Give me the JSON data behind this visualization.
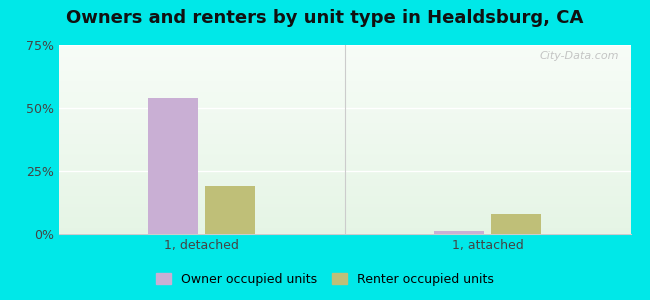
{
  "title": "Owners and renters by unit type in Healdsburg, CA",
  "categories": [
    "1, detached",
    "1, attached"
  ],
  "owner_values": [
    54.0,
    1.0
  ],
  "renter_values": [
    19.0,
    8.0
  ],
  "owner_color": "#c9afd4",
  "renter_color": "#bfbf78",
  "ylim": [
    0,
    75
  ],
  "yticks": [
    0,
    25,
    50,
    75
  ],
  "ytick_labels": [
    "0%",
    "25%",
    "50%",
    "75%"
  ],
  "bar_width": 0.35,
  "group_centers": [
    1.0,
    3.0
  ],
  "xlim": [
    0,
    4.0
  ],
  "legend_owner": "Owner occupied units",
  "legend_renter": "Renter occupied units",
  "outer_bg": "#00e8e8",
  "watermark": "City-Data.com",
  "title_fontsize": 13,
  "tick_fontsize": 9,
  "legend_fontsize": 9
}
